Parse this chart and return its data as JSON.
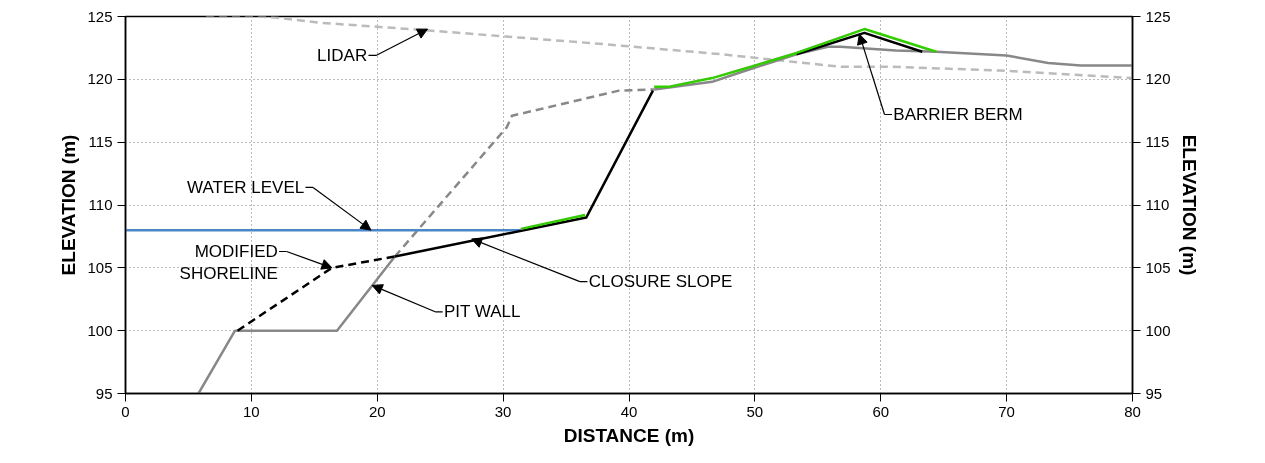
{
  "chart_data": {
    "type": "line",
    "xlabel": "DISTANCE (m)",
    "ylabel": "ELEVATION (m)",
    "y2label": "ELEVATION (m)",
    "xlim": [
      0,
      80
    ],
    "xticks": [
      0,
      10,
      20,
      30,
      40,
      50,
      60,
      70,
      80
    ],
    "ylim": [
      95,
      125
    ],
    "yticks": [
      95,
      100,
      105,
      110,
      115,
      120,
      125
    ],
    "y2lim": [
      95,
      125
    ],
    "y2ticks": [
      95,
      100,
      105,
      110,
      115,
      120,
      125
    ],
    "grid": true,
    "marker": "none",
    "series": [
      {
        "color": "#bbbbbb",
        "line_style": "dashed",
        "x": [
          6.4,
          10.5,
          12.1,
          15.5,
          22.6,
          31.6,
          36.8,
          47.3,
          56.8,
          60.9,
          69.5,
          80
        ],
        "values": [
          125,
          125,
          124.9,
          124.5,
          124.0,
          123.3,
          122.9,
          122.0,
          121.0,
          121.0,
          120.7,
          120.1
        ]
      },
      {
        "color": "#888888",
        "line_style": "dashed",
        "x": [
          21.4,
          30.3,
          30.7,
          39.2,
          42
        ],
        "values": [
          105.9,
          116.2,
          117.1,
          119.1,
          119.2
        ]
      },
      {
        "color": "#888888",
        "line_style": "solid",
        "x": [
          5.8,
          8.7,
          16.8,
          21.4
        ],
        "values": [
          95,
          100,
          100,
          105.9
        ]
      },
      {
        "color": "#888888",
        "line_style": "solid",
        "x": [
          42,
          46.6,
          49,
          53.3,
          55.8,
          56.8,
          61.2,
          64.4,
          70,
          73.3,
          75.9,
          80
        ],
        "values": [
          119.2,
          119.8,
          120.6,
          122.0,
          122.6,
          122.6,
          122.3,
          122.2,
          121.9,
          121.3,
          121.1,
          121.1
        ]
      },
      {
        "color": "#4a86c8",
        "line_style": "solid",
        "x": [
          0,
          31.4
        ],
        "values": [
          108,
          108
        ]
      },
      {
        "color": "#000000",
        "line_style": "dashed",
        "x": [
          8.9,
          16.4,
          21.4
        ],
        "values": [
          100,
          105,
          105.9
        ]
      },
      {
        "color": "#000000",
        "line_style": "solid",
        "x": [
          21.4,
          36.6,
          41.9
        ],
        "values": [
          105.9,
          109,
          119.1
        ]
      },
      {
        "color": "#000000",
        "line_style": "solid",
        "x": [
          53.3,
          58.7,
          63.3
        ],
        "values": [
          122.0,
          123.7,
          122.2
        ]
      },
      {
        "color": "#33cc00",
        "line_style": "solid",
        "x": [
          31.4,
          36.5
        ],
        "values": [
          108.1,
          109.2
        ]
      },
      {
        "color": "#33cc00",
        "line_style": "solid",
        "x": [
          42,
          43.1,
          46.6,
          49,
          53.3,
          58.7,
          64.4
        ],
        "values": [
          119.4,
          119.4,
          120.1,
          120.8,
          122.1,
          124.0,
          122.2
        ]
      }
    ],
    "annotations": [
      {
        "text": "LIDAR",
        "x": 24,
        "y": 124
      },
      {
        "text": "WATER LEVEL",
        "x": 19.5,
        "y": 108
      },
      {
        "text": "MODIFIED\nSHORELINE",
        "x": 16.4,
        "y": 105
      },
      {
        "text": "PIT WALL",
        "x": 19.6,
        "y": 103.6
      },
      {
        "text": "CLOSURE SLOPE",
        "x": 27.5,
        "y": 107.3
      },
      {
        "text": "BARRIER BERM",
        "x": 58.3,
        "y": 123.6
      }
    ]
  }
}
